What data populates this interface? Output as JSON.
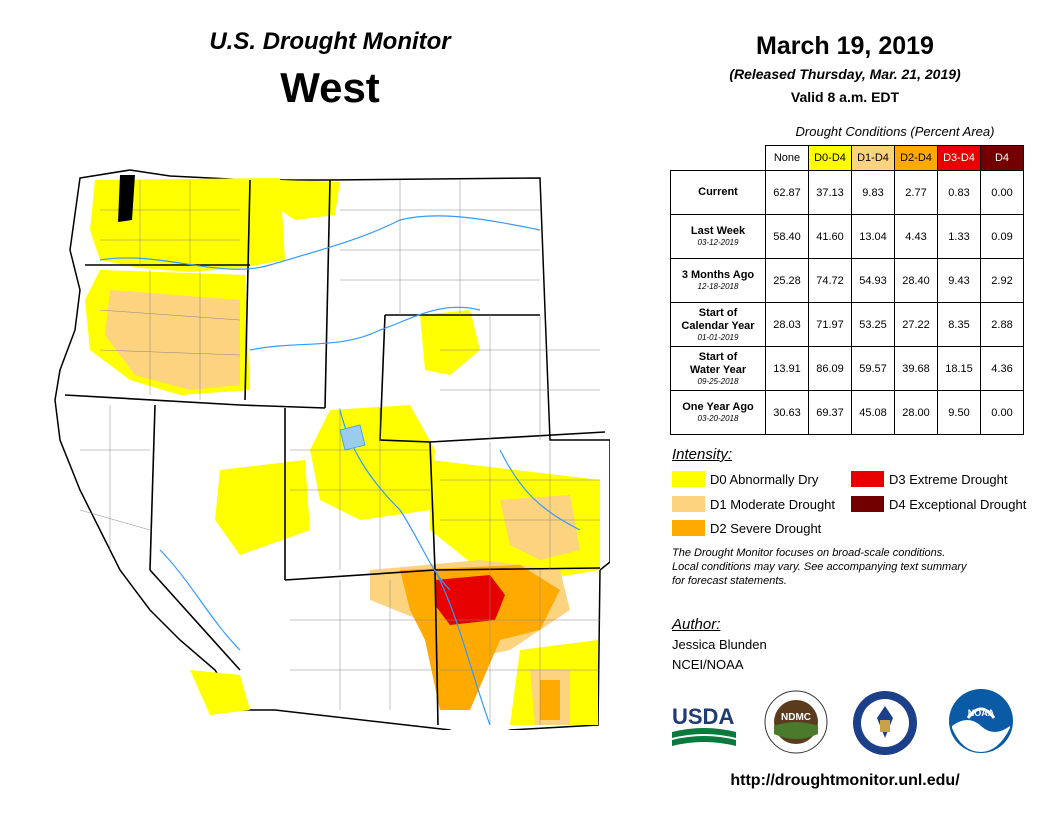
{
  "header": {
    "monitor_title": "U.S. Drought Monitor",
    "region": "West",
    "date": "March 19, 2019",
    "released": "(Released Thursday, Mar. 21, 2019)",
    "valid": "Valid 8 a.m. EDT"
  },
  "table": {
    "caption": "Drought Conditions (Percent Area)",
    "columns": [
      {
        "label": "None",
        "color": "#ffffff",
        "text_color": "#000000"
      },
      {
        "label": "D0-D4",
        "color": "#ffff00",
        "text_color": "#000000"
      },
      {
        "label": "D1-D4",
        "color": "#fcd37f",
        "text_color": "#000000"
      },
      {
        "label": "D2-D4",
        "color": "#ffaa00",
        "text_color": "#000000"
      },
      {
        "label": "D3-D4",
        "color": "#e60000",
        "text_color": "#ffffff"
      },
      {
        "label": "D4",
        "color": "#730000",
        "text_color": "#ffffff"
      }
    ],
    "rows": [
      {
        "label": "Current",
        "label2": "",
        "date": "",
        "values": [
          "62.87",
          "37.13",
          "9.83",
          "2.77",
          "0.83",
          "0.00"
        ]
      },
      {
        "label": "Last Week",
        "label2": "",
        "date": "03-12-2019",
        "values": [
          "58.40",
          "41.60",
          "13.04",
          "4.43",
          "1.33",
          "0.09"
        ]
      },
      {
        "label": "3 Months Ago",
        "label2": "",
        "date": "12-18-2018",
        "values": [
          "25.28",
          "74.72",
          "54.93",
          "28.40",
          "9.43",
          "2.92"
        ]
      },
      {
        "label": "Start of",
        "label2": "Calendar Year",
        "date": "01-01-2019",
        "values": [
          "28.03",
          "71.97",
          "53.25",
          "27.22",
          "8.35",
          "2.88"
        ]
      },
      {
        "label": "Start of",
        "label2": "Water Year",
        "date": "09-25-2018",
        "values": [
          "13.91",
          "86.09",
          "59.57",
          "39.68",
          "18.15",
          "4.36"
        ]
      },
      {
        "label": "One Year Ago",
        "label2": "",
        "date": "03-20-2018",
        "values": [
          "30.63",
          "69.37",
          "45.08",
          "28.00",
          "9.50",
          "0.00"
        ]
      }
    ]
  },
  "legend": {
    "title": "Intensity:",
    "items": [
      {
        "label": "D0 Abnormally Dry",
        "color": "#ffff00"
      },
      {
        "label": "D1 Moderate Drought",
        "color": "#fcd37f"
      },
      {
        "label": "D2 Severe Drought",
        "color": "#ffaa00"
      },
      {
        "label": "D3 Extreme Drought",
        "color": "#e60000"
      },
      {
        "label": "D4 Exceptional Drought",
        "color": "#730000"
      }
    ]
  },
  "disclaimer": {
    "line1": "The Drought Monitor focuses on broad-scale conditions.",
    "line2": "Local conditions may vary. See accompanying text summary",
    "line3": "for forecast statements."
  },
  "author": {
    "title": "Author:",
    "name": "Jessica Blunden",
    "org": "NCEI/NOAA"
  },
  "logos": {
    "usda": "USDA",
    "ndmc": "NDMC",
    "noaa": "NOAA"
  },
  "website": "http://droughtmonitor.unl.edu/"
}
